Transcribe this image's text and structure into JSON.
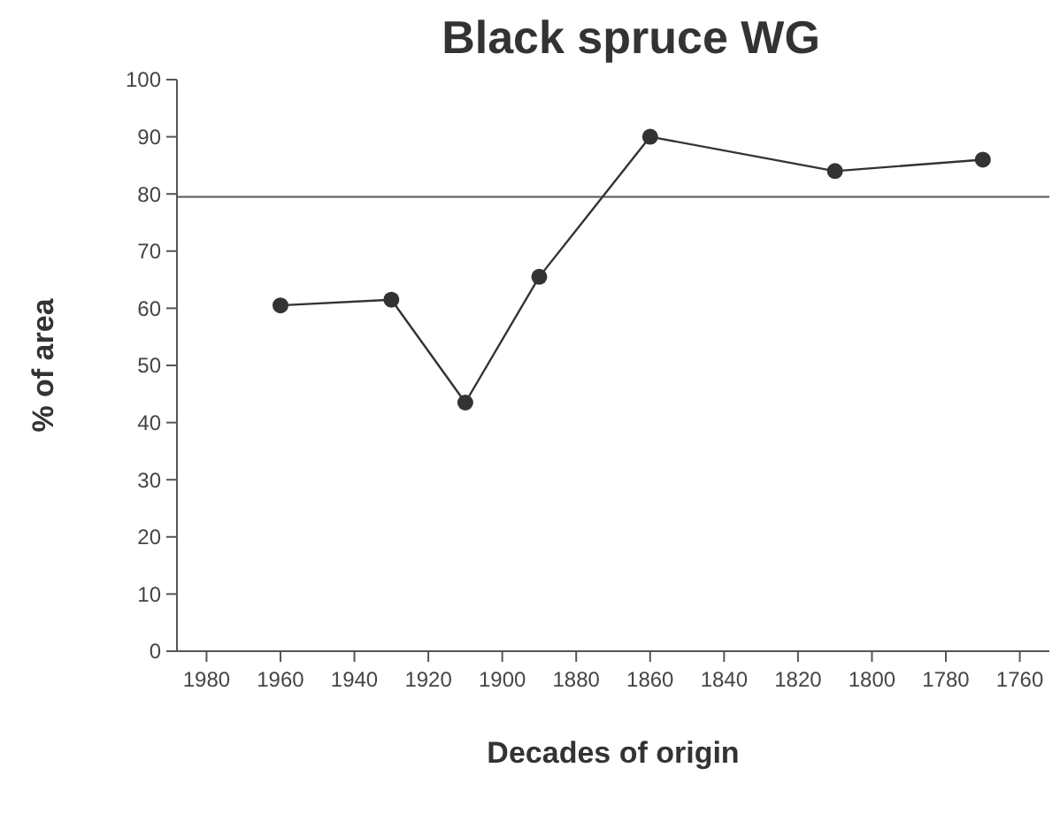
{
  "chart_data": {
    "type": "line",
    "title": "Black spruce WG",
    "xlabel": "Decades of origin",
    "ylabel": "% of area",
    "x": [
      1960,
      1930,
      1910,
      1890,
      1860,
      1810,
      1770
    ],
    "series": [
      {
        "color": "#333333",
        "values": [
          60.5,
          61.5,
          43.5,
          65.5,
          90,
          84,
          86
        ]
      }
    ],
    "xlim": [
      1988,
      1752
    ],
    "xticks": [
      1980,
      1960,
      1940,
      1920,
      1900,
      1880,
      1860,
      1840,
      1820,
      1800,
      1780,
      1760
    ],
    "ylim": [
      0,
      100
    ],
    "yticks": [
      0,
      10,
      20,
      30,
      40,
      50,
      60,
      70,
      80,
      90,
      100
    ],
    "ref_lines": [
      {
        "axis": "y",
        "value": 79.5,
        "color": "#555555"
      }
    ],
    "marker": "circle",
    "line_style": "solid",
    "grid": false
  }
}
